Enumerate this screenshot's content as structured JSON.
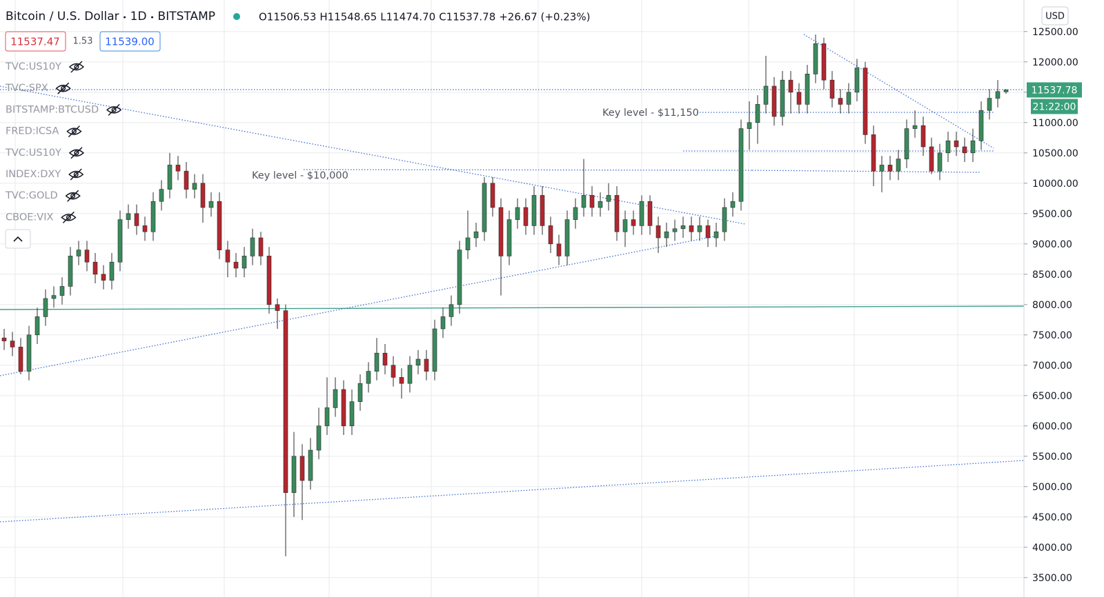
{
  "chart_data": {
    "type": "candlestick",
    "title": "Bitcoin / U.S. Dollar",
    "interval": "1D",
    "exchange": "BITSTAMP",
    "legend_values": [
      "O11506.53",
      "H11548.65",
      "L11474.70",
      "C11537.78",
      "+26.67 (+0.23%)"
    ],
    "sell_price": "11537.47",
    "spread": "1.53",
    "buy_price": "11539.00",
    "indicators": [
      "TVC:US10Y",
      "TVC:SPX",
      "BITSTAMP:BTCUSD",
      "FRED:ICSA",
      "TVC:US10Y",
      "INDEX:DXY",
      "TVC:GOLD",
      "CBOE:VIX"
    ],
    "annotations": [
      "Key level - $11,150",
      "Key level - $10,000"
    ],
    "currency": "USD",
    "last_price_label": "11537.78",
    "countdown": "21:22:00",
    "up_color": "#3a8a5c",
    "down_color": "#b3262f",
    "wick_color": "#2b2b2b",
    "price_label_color": "#3aa07a",
    "grid": true,
    "ylim": [
      3180,
      13020
    ],
    "yticks": [
      {
        "value": 3500,
        "label": "3500.00"
      },
      {
        "value": 4000,
        "label": "4000.00"
      },
      {
        "value": 4500,
        "label": "4500.00"
      },
      {
        "value": 5000,
        "label": "5000.00"
      },
      {
        "value": 5500,
        "label": "5500.00"
      },
      {
        "value": 6000,
        "label": "6000.00"
      },
      {
        "value": 6500,
        "label": "6500.00"
      },
      {
        "value": 7000,
        "label": "7000.00"
      },
      {
        "value": 7500,
        "label": "7500.00"
      },
      {
        "value": 8000,
        "label": "8000.00"
      },
      {
        "value": 8500,
        "label": "8500.00"
      },
      {
        "value": 9000,
        "label": "9000.00"
      },
      {
        "value": 9500,
        "label": "9500.00"
      },
      {
        "value": 10000,
        "label": "10000.00"
      },
      {
        "value": 10500,
        "label": "10500.00"
      },
      {
        "value": 11000,
        "label": "11000.00"
      },
      {
        "value": 11500,
        "label": "11500.00"
      },
      {
        "value": 12000,
        "label": "12000.00"
      },
      {
        "value": 12500,
        "label": "12500.00"
      }
    ],
    "ohlc": [
      [
        7450,
        7600,
        7250,
        7400
      ],
      [
        7400,
        7550,
        7150,
        7300
      ],
      [
        7300,
        7450,
        6850,
        6900
      ],
      [
        6900,
        7650,
        6750,
        7500
      ],
      [
        7500,
        7950,
        7350,
        7800
      ],
      [
        7800,
        8250,
        7650,
        8100
      ],
      [
        8100,
        8300,
        7950,
        8150
      ],
      [
        8150,
        8450,
        8000,
        8300
      ],
      [
        8300,
        8950,
        8150,
        8800
      ],
      [
        8800,
        9050,
        8650,
        8900
      ],
      [
        8900,
        9050,
        8550,
        8700
      ],
      [
        8700,
        8850,
        8350,
        8500
      ],
      [
        8500,
        8650,
        8250,
        8400
      ],
      [
        8400,
        8850,
        8250,
        8700
      ],
      [
        8700,
        9550,
        8550,
        9400
      ],
      [
        9400,
        9650,
        9250,
        9500
      ],
      [
        9500,
        9650,
        9150,
        9300
      ],
      [
        9300,
        9450,
        9050,
        9200
      ],
      [
        9200,
        9850,
        9050,
        9700
      ],
      [
        9700,
        10050,
        9550,
        9900
      ],
      [
        9900,
        10500,
        9750,
        10300
      ],
      [
        10300,
        10450,
        10050,
        10200
      ],
      [
        10200,
        10350,
        9750,
        9900
      ],
      [
        9900,
        10150,
        9750,
        10000
      ],
      [
        10000,
        10150,
        9350,
        9600
      ],
      [
        9600,
        9850,
        9450,
        9700
      ],
      [
        9700,
        9850,
        8750,
        8900
      ],
      [
        8900,
        9050,
        8450,
        8700
      ],
      [
        8700,
        8850,
        8450,
        8600
      ],
      [
        8600,
        8950,
        8450,
        8800
      ],
      [
        8800,
        9250,
        8650,
        9100
      ],
      [
        9100,
        9200,
        8650,
        8800
      ],
      [
        8800,
        8950,
        7850,
        8000
      ],
      [
        8000,
        8100,
        7600,
        7900
      ],
      [
        7900,
        8000,
        3850,
        4900
      ],
      [
        4900,
        5900,
        4500,
        5500
      ],
      [
        5500,
        5700,
        4450,
        5100
      ],
      [
        5100,
        5800,
        4950,
        5600
      ],
      [
        5600,
        6300,
        5450,
        6000
      ],
      [
        6000,
        6800,
        5850,
        6300
      ],
      [
        6300,
        6800,
        6150,
        6600
      ],
      [
        6600,
        6750,
        5850,
        6000
      ],
      [
        6000,
        6600,
        5850,
        6400
      ],
      [
        6400,
        6850,
        6250,
        6700
      ],
      [
        6700,
        7050,
        6550,
        6900
      ],
      [
        6900,
        7450,
        6750,
        7200
      ],
      [
        7200,
        7350,
        6850,
        7000
      ],
      [
        7000,
        7150,
        6650,
        6800
      ],
      [
        6800,
        6950,
        6450,
        6700
      ],
      [
        6700,
        7150,
        6550,
        7000
      ],
      [
        7000,
        7250,
        6850,
        7100
      ],
      [
        7100,
        7250,
        6750,
        6900
      ],
      [
        6900,
        7750,
        6750,
        7600
      ],
      [
        7600,
        7950,
        7450,
        7800
      ],
      [
        7800,
        8150,
        7650,
        8000
      ],
      [
        8000,
        9050,
        7850,
        8900
      ],
      [
        8900,
        9550,
        8750,
        9100
      ],
      [
        9100,
        9350,
        8950,
        9200
      ],
      [
        9200,
        10100,
        9050,
        10000
      ],
      [
        10000,
        10100,
        9450,
        9600
      ],
      [
        9600,
        9750,
        8150,
        8800
      ],
      [
        8800,
        9550,
        8650,
        9400
      ],
      [
        9400,
        9750,
        9250,
        9600
      ],
      [
        9600,
        9750,
        9150,
        9300
      ],
      [
        9300,
        9950,
        9150,
        9800
      ],
      [
        9800,
        9950,
        9150,
        9300
      ],
      [
        9300,
        9450,
        8850,
        9000
      ],
      [
        9000,
        9150,
        8650,
        8800
      ],
      [
        8800,
        9550,
        8650,
        9400
      ],
      [
        9400,
        9750,
        9250,
        9600
      ],
      [
        9600,
        10400,
        9450,
        9800
      ],
      [
        9800,
        9950,
        9450,
        9600
      ],
      [
        9600,
        9850,
        9450,
        9700
      ],
      [
        9700,
        10000,
        9550,
        9800
      ],
      [
        9800,
        9950,
        9050,
        9200
      ],
      [
        9200,
        9550,
        8950,
        9400
      ],
      [
        9400,
        9550,
        9150,
        9300
      ],
      [
        9300,
        9800,
        9150,
        9700
      ],
      [
        9700,
        9800,
        9150,
        9300
      ],
      [
        9300,
        9450,
        8850,
        9100
      ],
      [
        9100,
        9350,
        8950,
        9200
      ],
      [
        9200,
        9400,
        9050,
        9250
      ],
      [
        9250,
        9450,
        9100,
        9300
      ],
      [
        9300,
        9450,
        9050,
        9200
      ],
      [
        9200,
        9450,
        9050,
        9300
      ],
      [
        9300,
        9400,
        8950,
        9100
      ],
      [
        9100,
        9350,
        8950,
        9200
      ],
      [
        9200,
        9750,
        9050,
        9600
      ],
      [
        9600,
        9850,
        9450,
        9700
      ],
      [
        9700,
        11050,
        9550,
        10900
      ],
      [
        10900,
        11350,
        10550,
        11000
      ],
      [
        11000,
        11450,
        10650,
        11300
      ],
      [
        11300,
        12100,
        11150,
        11600
      ],
      [
        11600,
        11750,
        10950,
        11100
      ],
      [
        11100,
        11850,
        10950,
        11700
      ],
      [
        11700,
        11850,
        11150,
        11500
      ],
      [
        11500,
        11650,
        11150,
        11300
      ],
      [
        11300,
        11950,
        11150,
        11800
      ],
      [
        11800,
        12450,
        11650,
        12300
      ],
      [
        12300,
        12400,
        11550,
        11700
      ],
      [
        11700,
        11850,
        11250,
        11400
      ],
      [
        11400,
        11550,
        11150,
        11300
      ],
      [
        11300,
        11650,
        11150,
        11500
      ],
      [
        11500,
        12050,
        11350,
        11900
      ],
      [
        11900,
        12000,
        10650,
        10800
      ],
      [
        10800,
        10950,
        9950,
        10200
      ],
      [
        10200,
        10450,
        9850,
        10300
      ],
      [
        10300,
        10450,
        10050,
        10200
      ],
      [
        10200,
        10550,
        10050,
        10400
      ],
      [
        10400,
        11050,
        10250,
        10900
      ],
      [
        10900,
        11200,
        10750,
        10950
      ],
      [
        10950,
        11100,
        10450,
        10600
      ],
      [
        10600,
        10750,
        10150,
        10200
      ],
      [
        10200,
        10650,
        10050,
        10500
      ],
      [
        10500,
        10850,
        10350,
        10700
      ],
      [
        10700,
        10850,
        10450,
        10600
      ],
      [
        10600,
        10750,
        10350,
        10500
      ],
      [
        10500,
        10900,
        10350,
        10700
      ],
      [
        10700,
        11350,
        10550,
        11200
      ],
      [
        11200,
        11550,
        11050,
        11400
      ],
      [
        11400,
        11700,
        11250,
        11511.11
      ],
      [
        11506.53,
        11548.65,
        11474.7,
        11537.78
      ]
    ]
  }
}
